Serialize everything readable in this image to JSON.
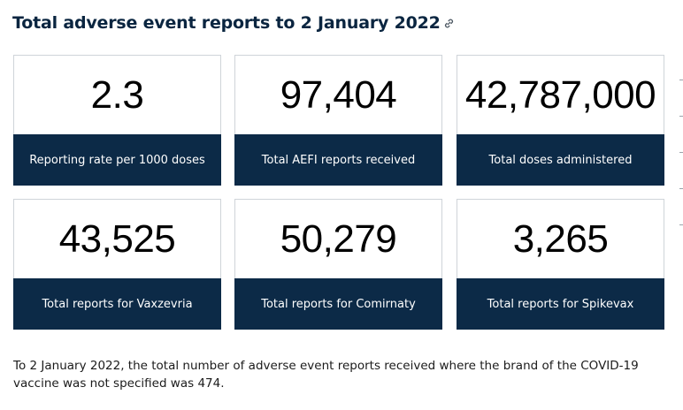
{
  "header": {
    "title": "Total adverse event reports to 2 January 2022"
  },
  "cards": [
    {
      "value": "2.3",
      "label": "Reporting rate per 1000 doses"
    },
    {
      "value": "97,404",
      "label": "Total AEFI reports received"
    },
    {
      "value": "42,787,000",
      "label": "Total doses administered"
    },
    {
      "value": "43,525",
      "label": "Total reports for Vaxzevria"
    },
    {
      "value": "50,279",
      "label": "Total reports for Comirnaty"
    },
    {
      "value": "3,265",
      "label": "Total reports for Spikevax"
    }
  ],
  "note": "To 2 January 2022, the total number of adverse event reports received where the brand of the COVID-19 vaccine was not specified was 474.",
  "colors": {
    "title": "#0a2540",
    "label_band": "#0c2a47",
    "card_border": "#cfd4d9"
  }
}
